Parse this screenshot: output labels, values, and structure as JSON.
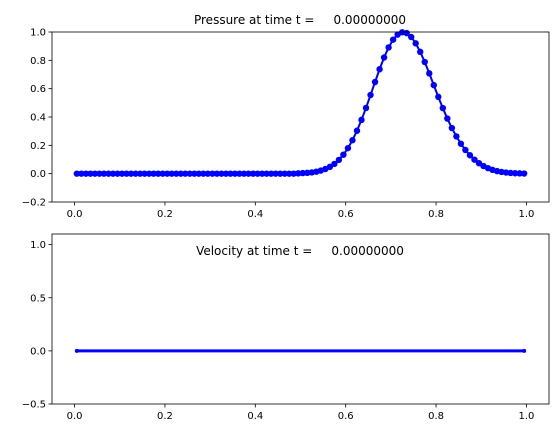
{
  "chart_data": [
    {
      "type": "line",
      "title": "Pressure at time t =     0.00000000",
      "xlabel": "",
      "ylabel": "",
      "xlim": [
        -0.05,
        1.05
      ],
      "ylim": [
        -0.2,
        1.0
      ],
      "xticks": [
        "0.0",
        "0.2",
        "0.4",
        "0.6",
        "0.8",
        "1.0"
      ],
      "yticks": [
        "−0.2",
        "0.0",
        "0.2",
        "0.4",
        "0.6",
        "0.8",
        "1.0"
      ],
      "grid": false,
      "legend": "none",
      "series": [
        {
          "color": "#0000ff",
          "marker": "circle",
          "x": [
            0.005,
            0.015,
            0.025,
            0.035,
            0.045,
            0.055,
            0.065,
            0.075,
            0.085,
            0.095,
            0.105,
            0.115,
            0.125,
            0.135,
            0.145,
            0.155,
            0.165,
            0.175,
            0.185,
            0.195,
            0.205,
            0.215,
            0.225,
            0.235,
            0.245,
            0.255,
            0.265,
            0.275,
            0.285,
            0.295,
            0.305,
            0.315,
            0.325,
            0.335,
            0.345,
            0.355,
            0.365,
            0.375,
            0.385,
            0.395,
            0.405,
            0.415,
            0.425,
            0.435,
            0.445,
            0.455,
            0.465,
            0.475,
            0.485,
            0.495,
            0.505,
            0.515,
            0.525,
            0.535,
            0.545,
            0.555,
            0.565,
            0.575,
            0.585,
            0.595,
            0.605,
            0.615,
            0.625,
            0.635,
            0.645,
            0.655,
            0.665,
            0.675,
            0.685,
            0.695,
            0.705,
            0.715,
            0.725,
            0.735,
            0.745,
            0.755,
            0.765,
            0.775,
            0.785,
            0.795,
            0.805,
            0.815,
            0.825,
            0.835,
            0.845,
            0.855,
            0.865,
            0.875,
            0.885,
            0.895,
            0.905,
            0.915,
            0.925,
            0.935,
            0.945,
            0.955,
            0.965,
            0.975,
            0.985,
            0.995
          ],
          "y": [
            0.0,
            0.0,
            0.0,
            0.0,
            0.0,
            0.0,
            0.0,
            0.0,
            0.0,
            0.0,
            0.0,
            0.0,
            0.0,
            0.0,
            0.0,
            0.0,
            0.0,
            0.0,
            0.0,
            0.0,
            0.0,
            0.0,
            0.0,
            0.0,
            0.0,
            0.0,
            0.0,
            0.0,
            0.0,
            0.0,
            0.0,
            0.0,
            0.0,
            0.0,
            0.0,
            0.0,
            0.0,
            0.0,
            0.0,
            0.0,
            0.0,
            0.0,
            0.0,
            0.0,
            0.0,
            0.0,
            0.0,
            0.0,
            0.0,
            0.002,
            0.004,
            0.006,
            0.009,
            0.014,
            0.022,
            0.033,
            0.048,
            0.069,
            0.097,
            0.134,
            0.18,
            0.236,
            0.303,
            0.38,
            0.464,
            0.555,
            0.647,
            0.737,
            0.82,
            0.891,
            0.946,
            0.982,
            0.998,
            0.992,
            0.965,
            0.92,
            0.86,
            0.788,
            0.708,
            0.625,
            0.542,
            0.463,
            0.389,
            0.322,
            0.263,
            0.211,
            0.167,
            0.13,
            0.099,
            0.074,
            0.054,
            0.039,
            0.027,
            0.018,
            0.012,
            0.008,
            0.005,
            0.003,
            0.002,
            0.001
          ]
        }
      ]
    },
    {
      "type": "line",
      "title": "Velocity at time t =     0.00000000",
      "xlabel": "",
      "ylabel": "",
      "xlim": [
        -0.05,
        1.05
      ],
      "ylim": [
        -0.5,
        1.1
      ],
      "xticks": [
        "0.0",
        "0.2",
        "0.4",
        "0.6",
        "0.8",
        "1.0"
      ],
      "yticks": [
        "−0.5",
        "0.0",
        "0.5",
        "1.0"
      ],
      "grid": false,
      "legend": "none",
      "series": [
        {
          "color": "#0000ff",
          "marker": "circle",
          "x": [
            0.005,
            0.995
          ],
          "y": [
            0.0,
            0.0
          ]
        }
      ]
    }
  ]
}
